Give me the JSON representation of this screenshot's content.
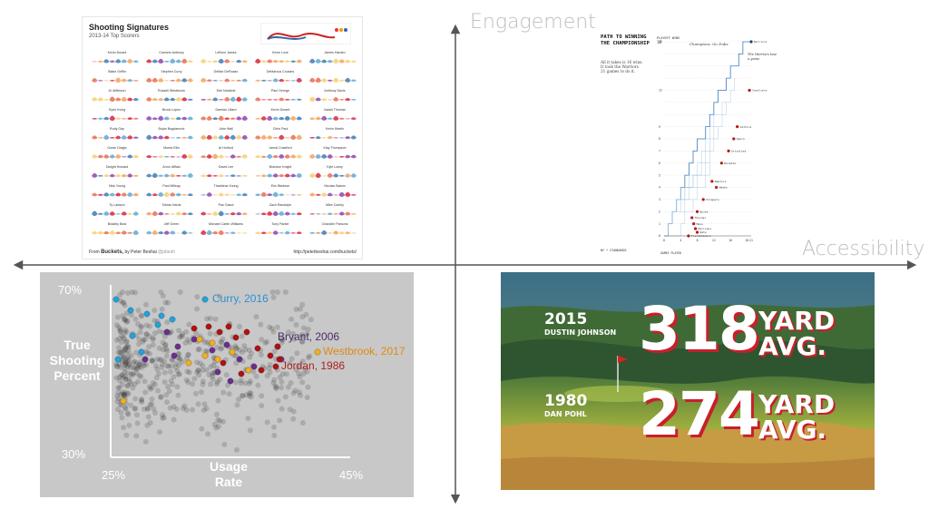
{
  "axes": {
    "vertical_label": "Engagement",
    "horizontal_label": "Accessibility"
  },
  "top_left": {
    "title": "Shooting Signatures",
    "subtitle": "2013-14 Top Scorers",
    "footer_from": "From",
    "footer_brand": "Buckets,",
    "footer_by": "by Peter Beshai",
    "footer_handle": "@pbesh",
    "footer_url": "http://peterbeshai.com/buckets/",
    "players": [
      "Kevin Durant",
      "Carmelo Anthony",
      "LeBron James",
      "Kevin Love",
      "James Harden",
      "Blake Griffin",
      "Stephen Curry",
      "DeMar DeRozan",
      "DeMarcus Cousins",
      "",
      "Al Jefferson",
      "Russell Westbrook",
      "Dirk Nowitzki",
      "Paul George",
      "Anthony Davis",
      "Kyrie Irving",
      "Brook Lopez",
      "Damian Lillard",
      "Kevin Durant",
      "Isaiah Thomas",
      "Rudy Gay",
      "Bojan Bogdanovic",
      "John Wall",
      "Chris Paul",
      "Kevin Martin",
      "Goran Dragic",
      "Monta Ellis",
      "Al Horford",
      "Jamal Crawford",
      "Klay Thompson",
      "Dwight Howard",
      "Arron Afflalo",
      "David Lee",
      "Brandon Knight",
      "Kyle Lowry",
      "Nick Young",
      "Paul Millsap",
      "Thaddeus Young",
      "Eric Bledsoe",
      "Nicolas Batum",
      "Ty Lawson",
      "Tobias Harris",
      "Pau Gasol",
      "Zach Randolph",
      "Mike Conley",
      "Bradley Beal",
      "Jeff Green",
      "Michael Carter-Williams",
      "Tony Parker",
      "Chandler Parsons"
    ]
  },
  "top_right": {
    "title": "PATH TO WINNING THE CHAMPIONSHIP",
    "description": "All it takes is 16 wins. It took the Warriors 21 games to do it.",
    "header_left": "PLAYOFF WINS",
    "header_center": "Champions. Go Dubs",
    "annotation": "The Warriors lose a game",
    "y_top": "16",
    "x_axis_label": "GAMES PLAYED",
    "footer": "NY • STANDARDS",
    "teams": [
      {
        "name": "Warriors",
        "y": 16
      },
      {
        "name": "Cavaliers",
        "y": 12
      },
      {
        "name": "Celtics",
        "y": 9
      },
      {
        "name": "Spurs",
        "y": 8
      },
      {
        "name": "Grizzlies",
        "y": 7
      },
      {
        "name": "Rockets",
        "y": 6
      },
      {
        "name": "Raptors",
        "y": 4.5
      },
      {
        "name": "Hawks",
        "y": 4
      },
      {
        "name": "Clippers",
        "y": 3
      },
      {
        "name": "Bucks",
        "y": 2
      },
      {
        "name": "Thunder",
        "y": 1.5
      },
      {
        "name": "Mavs",
        "y": 1
      },
      {
        "name": "Pelicans",
        "y": 0.6
      },
      {
        "name": "Nets",
        "y": 0.3
      },
      {
        "name": "Trailblazers",
        "y": 0
      }
    ],
    "x_ticks": [
      "0",
      "4",
      "8",
      "12",
      "16",
      "20",
      "21"
    ]
  },
  "bottom_left": {
    "ylabel_line1": "True",
    "ylabel_line2": "Shooting",
    "ylabel_line3": "Percent",
    "xlabel_line1": "Usage",
    "xlabel_line2": "Rate",
    "y_top_tick": "70%",
    "y_bottom_tick": "30%",
    "x_left_tick": "25%",
    "x_right_tick": "45%",
    "labels": [
      {
        "text": "Curry, 2016",
        "color": "#2b8fd6"
      },
      {
        "text": "Bryant, 2006",
        "color": "#4a2a6a"
      },
      {
        "text": "Westbrook, 2017",
        "color": "#e08a12"
      },
      {
        "text": "Jordan, 1986",
        "color": "#b01e1e"
      }
    ],
    "colors": {
      "curry": "#1fa2e0",
      "kobe": "#6a2d8f",
      "wb": "#f2b01c",
      "jordan": "#b31010",
      "gray": "#222222"
    }
  },
  "bottom_right": {
    "row1_year": "2015",
    "row1_name": "DUSTIN JOHNSON",
    "row1_value": "318",
    "row1_unit1": "YARD",
    "row1_unit2": "AVG.",
    "row2_year": "1980",
    "row2_name": "DAN POHL",
    "row2_value": "274",
    "row2_unit1": "YARD",
    "row2_unit2": "AVG."
  }
}
